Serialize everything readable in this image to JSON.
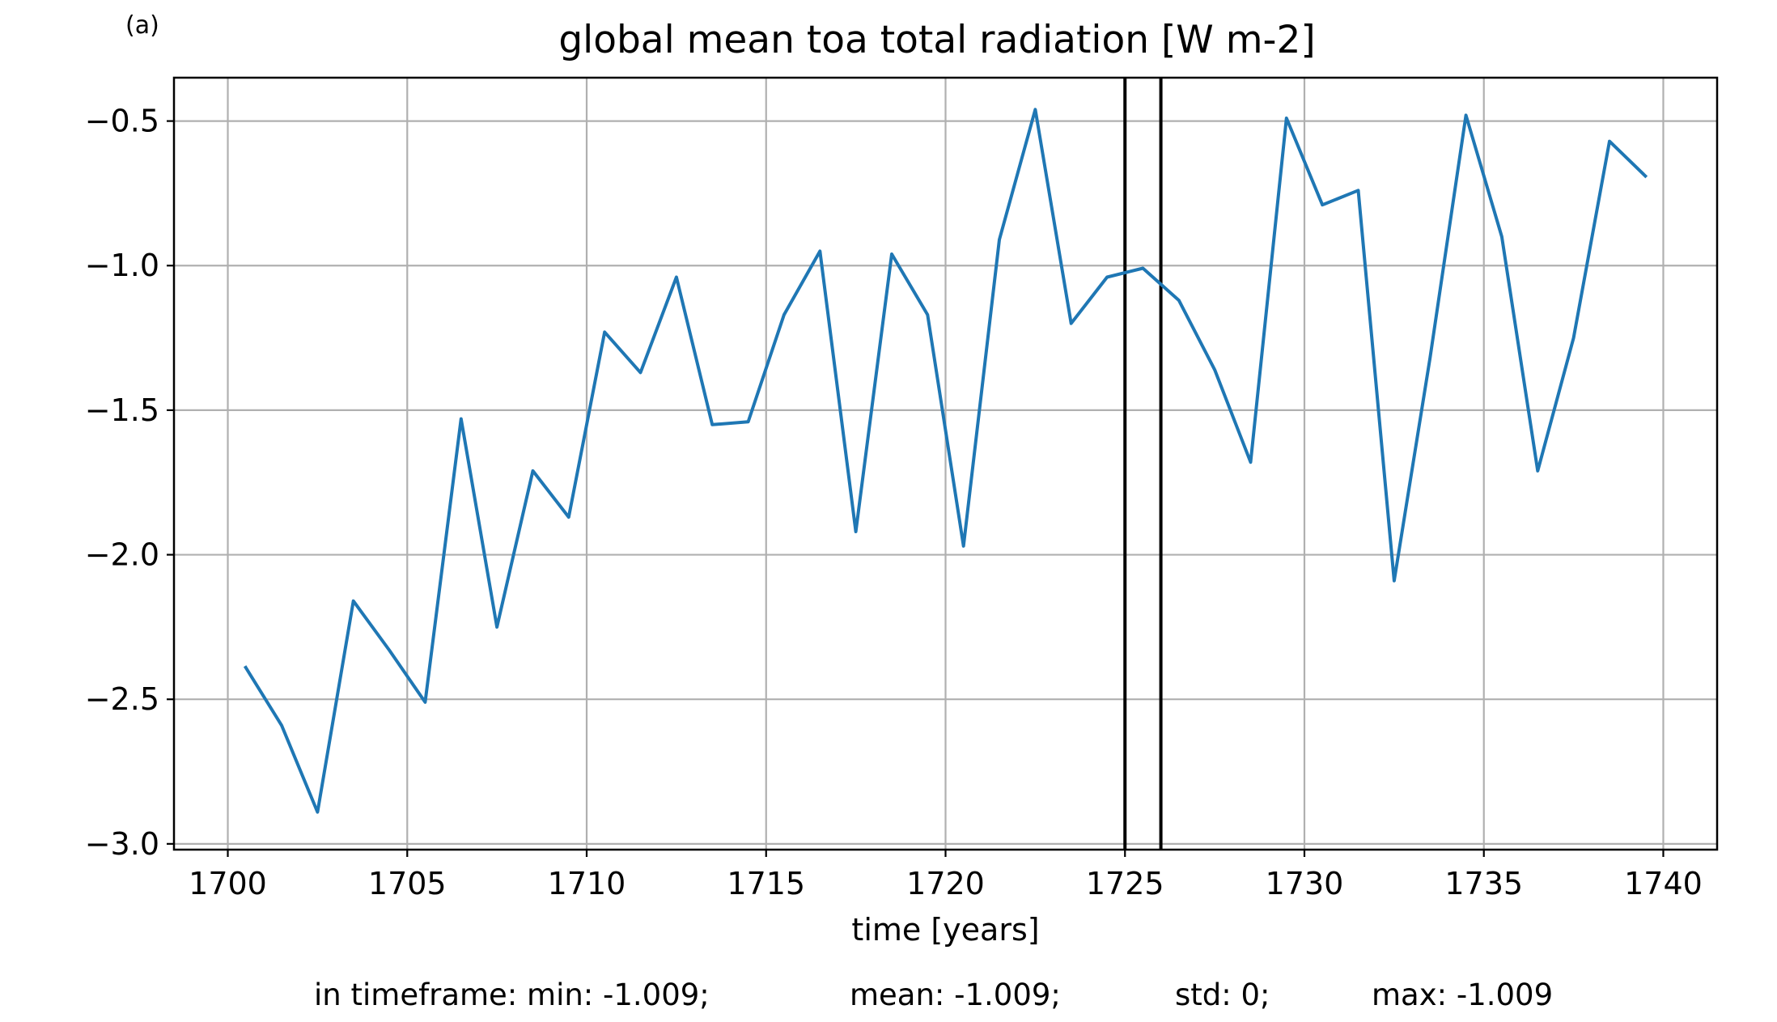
{
  "panel_label": "(a)",
  "stats": {
    "min": "in timeframe: min: -1.009;",
    "mean": "mean: -1.009;",
    "std": "std: 0;",
    "max": "max: -1.009"
  },
  "colors": {
    "series": "#1f77b4",
    "grid": "#b0b0b0",
    "vline": "#000000"
  },
  "chart_data": {
    "type": "line",
    "title": "global mean toa total radiation [W m-2]",
    "xlabel": "time [years]",
    "ylabel": "",
    "xlim": [
      1698.5,
      1741.5
    ],
    "ylim": [
      -3.02,
      -0.35
    ],
    "xticks": [
      1700,
      1705,
      1710,
      1715,
      1720,
      1725,
      1730,
      1735,
      1740
    ],
    "xtick_labels": [
      "1700",
      "1705",
      "1710",
      "1715",
      "1720",
      "1725",
      "1730",
      "1735",
      "1740"
    ],
    "yticks": [
      -0.5,
      -1.0,
      -1.5,
      -2.0,
      -2.5,
      -3.0
    ],
    "ytick_labels": [
      "−0.5",
      "−1.0",
      "−1.5",
      "−2.0",
      "−2.5",
      "−3.0"
    ],
    "grid": true,
    "vlines": [
      1725,
      1726
    ],
    "x": [
      1700.5,
      1701.5,
      1702.5,
      1703.5,
      1704.5,
      1705.5,
      1706.5,
      1707.5,
      1708.5,
      1709.5,
      1710.5,
      1711.5,
      1712.5,
      1713.5,
      1714.5,
      1715.5,
      1716.5,
      1717.5,
      1718.5,
      1719.5,
      1720.5,
      1721.5,
      1722.5,
      1723.5,
      1724.5,
      1725.5,
      1726.5,
      1727.5,
      1728.5,
      1729.5,
      1730.5,
      1731.5,
      1732.5,
      1733.5,
      1734.5,
      1735.5,
      1736.5,
      1737.5,
      1738.5,
      1739.5
    ],
    "y": [
      -2.39,
      -2.59,
      -2.89,
      -2.16,
      -2.33,
      -2.51,
      -1.53,
      -2.25,
      -1.71,
      -1.87,
      -1.23,
      -1.37,
      -1.04,
      -1.55,
      -1.54,
      -1.17,
      -0.95,
      -1.92,
      -0.96,
      -1.17,
      -1.97,
      -0.91,
      -0.46,
      -1.2,
      -1.04,
      -1.009,
      -1.12,
      -1.36,
      -1.68,
      -0.49,
      -0.79,
      -0.74,
      -2.09,
      -1.32,
      -0.48,
      -0.9,
      -1.71,
      -1.25,
      -0.57,
      -0.69
    ]
  }
}
